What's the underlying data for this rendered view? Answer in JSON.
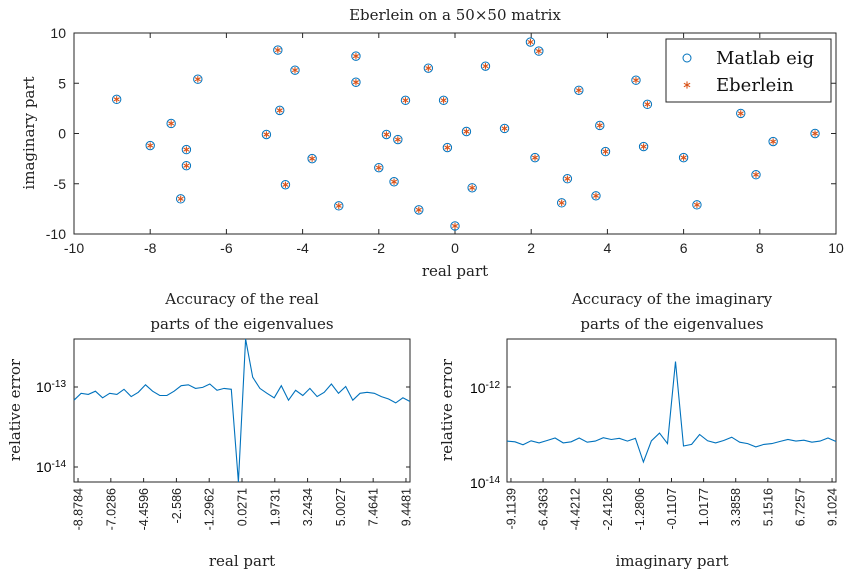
{
  "chart_data": [
    {
      "type": "scatter",
      "title": "Eberlein on a 50×50 matrix",
      "xlabel": "real part",
      "ylabel": "imaginary part",
      "xlim": [
        -10,
        10
      ],
      "ylim": [
        -10,
        10
      ],
      "xticks": [
        "-10",
        "-8",
        "-6",
        "-4",
        "-2",
        "0",
        "2",
        "4",
        "6",
        "8",
        "10"
      ],
      "yticks": [
        "10",
        "5",
        "0",
        "-5",
        "-10"
      ],
      "legend_position": "top-right",
      "series": [
        {
          "name": "Matlab eig",
          "marker": "circle",
          "color": "#0072BD"
        },
        {
          "name": "Eberlein",
          "marker": "asterisk",
          "color": "#D95319"
        }
      ],
      "points": [
        [
          -8.88,
          3.4
        ],
        [
          -8.0,
          -1.2
        ],
        [
          -7.45,
          1.0
        ],
        [
          -7.2,
          -6.5
        ],
        [
          -7.05,
          -1.6
        ],
        [
          -7.05,
          -3.2
        ],
        [
          -6.75,
          5.4
        ],
        [
          -4.95,
          -0.1
        ],
        [
          -4.65,
          8.3
        ],
        [
          -4.6,
          2.3
        ],
        [
          -4.45,
          -5.1
        ],
        [
          -4.2,
          6.3
        ],
        [
          -3.75,
          -2.5
        ],
        [
          -3.05,
          -7.2
        ],
        [
          -2.6,
          7.7
        ],
        [
          -2.6,
          5.1
        ],
        [
          -2.0,
          -3.4
        ],
        [
          -1.8,
          -0.1
        ],
        [
          -1.6,
          -4.8
        ],
        [
          -1.5,
          -0.6
        ],
        [
          -1.3,
          3.3
        ],
        [
          -0.95,
          -7.6
        ],
        [
          -0.7,
          6.5
        ],
        [
          -0.3,
          3.3
        ],
        [
          -0.2,
          -1.4
        ],
        [
          0.0,
          -9.2
        ],
        [
          0.3,
          0.2
        ],
        [
          0.45,
          -5.4
        ],
        [
          0.8,
          6.7
        ],
        [
          1.3,
          0.5
        ],
        [
          1.98,
          9.1
        ],
        [
          2.1,
          -2.4
        ],
        [
          2.2,
          8.2
        ],
        [
          2.8,
          -6.9
        ],
        [
          2.95,
          -4.5
        ],
        [
          3.25,
          4.3
        ],
        [
          3.7,
          -6.2
        ],
        [
          3.8,
          0.8
        ],
        [
          3.95,
          -1.8
        ],
        [
          4.75,
          5.3
        ],
        [
          4.95,
          -1.3
        ],
        [
          5.05,
          2.9
        ],
        [
          6.0,
          -2.4
        ],
        [
          6.35,
          -7.1
        ],
        [
          7.5,
          2.0
        ],
        [
          7.9,
          -4.1
        ],
        [
          8.35,
          -0.8
        ],
        [
          9.45,
          0.0
        ]
      ]
    },
    {
      "type": "line",
      "title_line1": "Accuracy of the real",
      "title_line2": "parts of the eigenvalues",
      "xlabel": "real part",
      "ylabel": "relative error",
      "yscale": "log",
      "ylim": [
        7e-15,
        3e-13
      ],
      "yticks": [
        "10-13",
        "10-14"
      ],
      "xticks": [
        "-8.8784",
        "-7.0286",
        "-4.4596",
        "-2.586",
        "-1.2962",
        "0.0271",
        "1.9731",
        "3.2434",
        "5.0027",
        "7.4641",
        "9.4481"
      ],
      "values": [
        6e-14,
        7.2e-14,
        7e-14,
        7.6e-14,
        6.4e-14,
        7.2e-14,
        7e-14,
        8e-14,
        6.6e-14,
        7.4e-14,
        9e-14,
        7.6e-14,
        6.8e-14,
        6.8e-14,
        7.6e-14,
        8.8e-14,
        9e-14,
        8.2e-14,
        8.4e-14,
        9.2e-14,
        7.8e-14,
        8.2e-14,
        8e-14,
        7e-15,
        3e-13,
        1.1e-13,
        8.2e-14,
        7.2e-14,
        6.4e-14,
        8.8e-14,
        6e-14,
        7.8e-14,
        6.8e-14,
        8.2e-14,
        6.6e-14,
        7.4e-14,
        9.2e-14,
        7.2e-14,
        8.6e-14,
        6e-14,
        7.2e-14,
        7.4e-14,
        7.2e-14,
        6.6e-14,
        6.2e-14,
        5.6e-14,
        6.4e-14,
        5.8e-14
      ],
      "color": "#0072BD"
    },
    {
      "type": "line",
      "title_line1": "Accuracy of the imaginary",
      "title_line2": "parts of the eigenvalues",
      "xlabel": "imaginary part",
      "ylabel": "relative error",
      "yscale": "log",
      "ylim": [
        1e-14,
        7e-12
      ],
      "yticks": [
        "10-12",
        "10-14"
      ],
      "xticks": [
        "-9.1139",
        "-6.4363",
        "-4.4212",
        "-2.4126",
        "-1.2806",
        "-0.1107",
        "1.0177",
        "3.3858",
        "5.1516",
        "6.7257",
        "9.1024"
      ],
      "values": [
        6.5e-14,
        6.3e-14,
        5.5e-14,
        6.6e-14,
        6e-14,
        6.7e-14,
        7.5e-14,
        6e-14,
        6.3e-14,
        7.5e-14,
        6.2e-14,
        6.5e-14,
        7.6e-14,
        7e-14,
        7.4e-14,
        6.5e-14,
        7.4e-14,
        2.5e-14,
        6.6e-14,
        9.4e-14,
        5.8e-14,
        2.5e-12,
        5.2e-14,
        5.6e-14,
        8.8e-14,
        6.6e-14,
        6e-14,
        6.7e-14,
        7.8e-14,
        6.2e-14,
        5.8e-14,
        5e-14,
        5.6e-14,
        5.8e-14,
        6.4e-14,
        7e-14,
        6.5e-14,
        6.8e-14,
        6.2e-14,
        6.5e-14,
        7.5e-14,
        6.4e-14
      ],
      "color": "#0072BD"
    }
  ]
}
